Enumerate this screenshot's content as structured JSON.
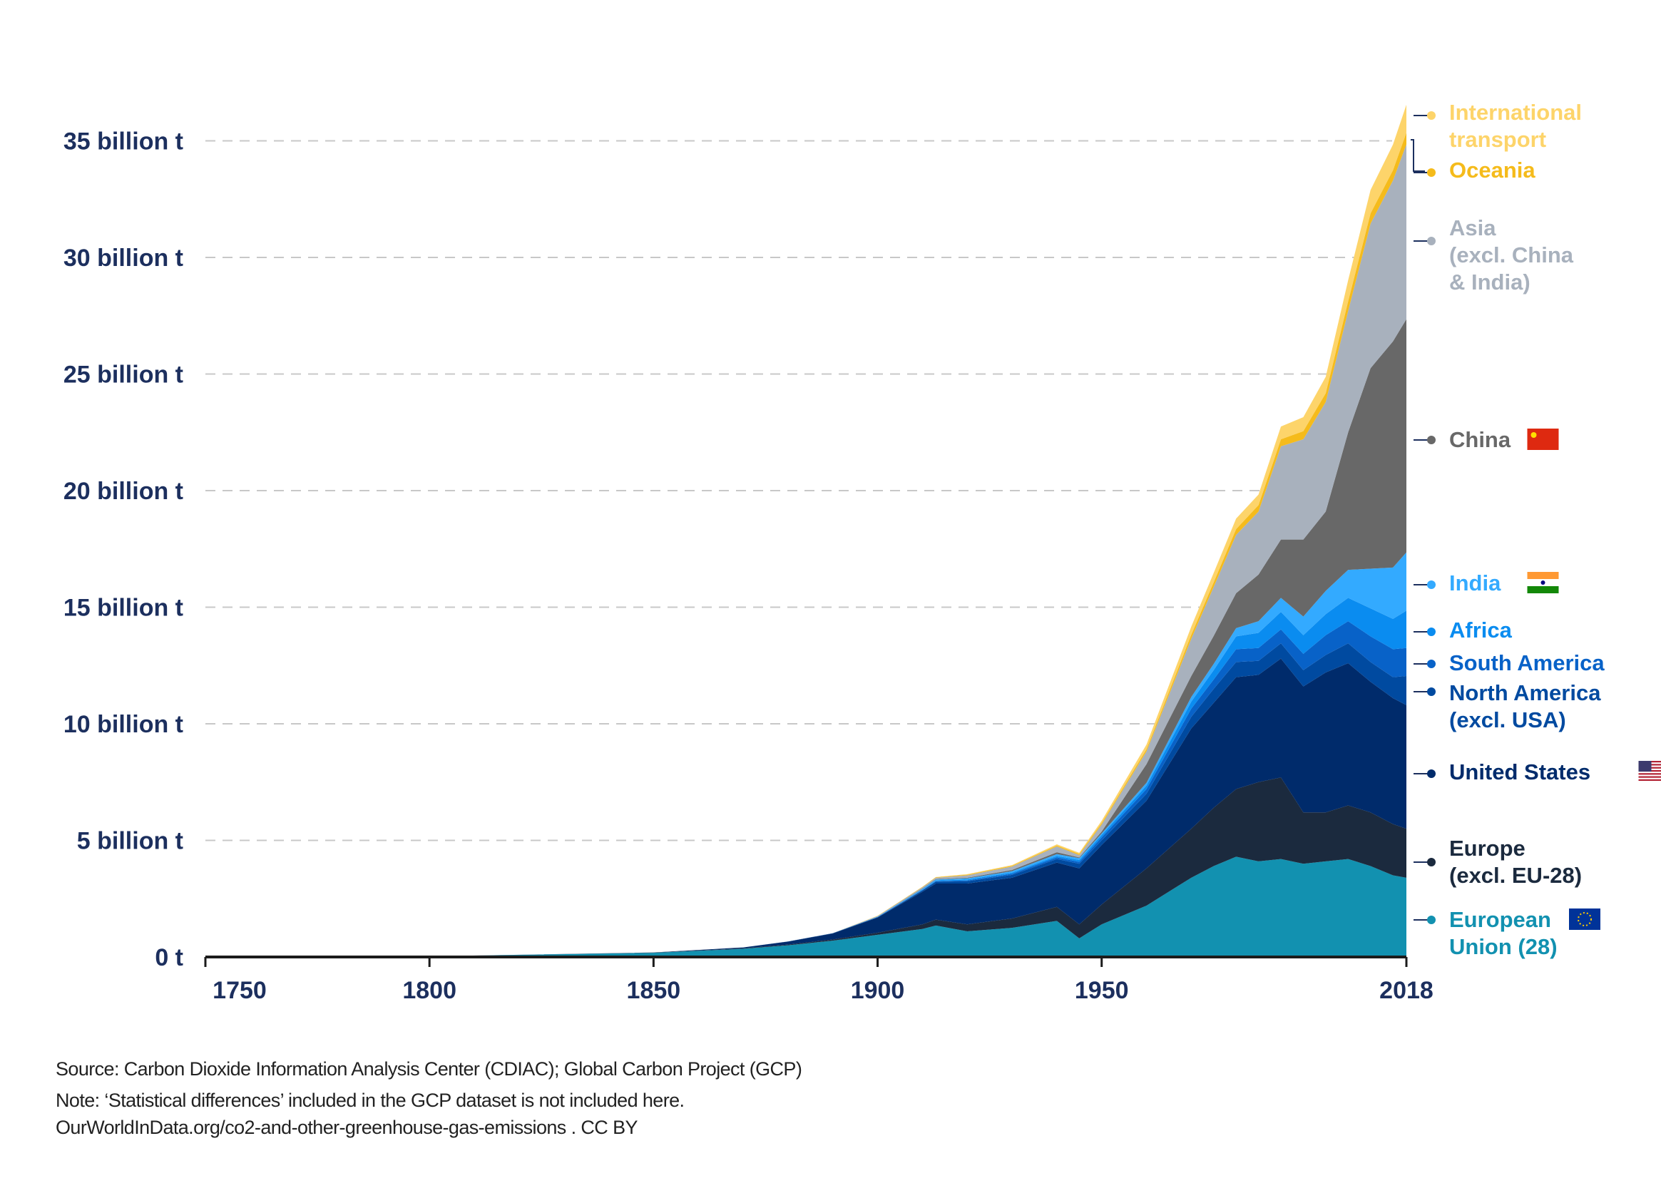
{
  "chart_data": {
    "type": "area",
    "stacked": true,
    "title": "",
    "xlabel": "",
    "ylabel": "",
    "xlim": [
      1750,
      2018
    ],
    "ylim": [
      0,
      36.6
    ],
    "y_unit": "billion t",
    "x_ticks": [
      "1750",
      "1800",
      "1850",
      "1900",
      "1950",
      "2018"
    ],
    "y_ticks": [
      {
        "value": 0,
        "label": "0 t"
      },
      {
        "value": 5,
        "label": "5 billion t"
      },
      {
        "value": 10,
        "label": "10 billion t"
      },
      {
        "value": 15,
        "label": "15 billion t"
      },
      {
        "value": 20,
        "label": "20 billion t"
      },
      {
        "value": 25,
        "label": "25 billion t"
      },
      {
        "value": 30,
        "label": "30 billion t"
      },
      {
        "value": 35,
        "label": "35 billion t"
      }
    ],
    "grid": "horizontal dashed",
    "legend": "right, inline labels",
    "x": [
      1750,
      1800,
      1850,
      1870,
      1880,
      1890,
      1900,
      1910,
      1913,
      1920,
      1930,
      1940,
      1945,
      1950,
      1960,
      1970,
      1975,
      1980,
      1985,
      1990,
      1995,
      2000,
      2005,
      2010,
      2015,
      2018
    ],
    "series": [
      {
        "name": "European Union (28)",
        "label_lines": [
          "European",
          "Union (28)"
        ],
        "color": "#1291b0",
        "flag": "eu",
        "values": [
          0.009,
          0.028,
          0.18,
          0.35,
          0.5,
          0.7,
          0.95,
          1.2,
          1.35,
          1.1,
          1.25,
          1.55,
          0.8,
          1.4,
          2.2,
          3.4,
          3.9,
          4.3,
          4.1,
          4.2,
          4.0,
          4.1,
          4.2,
          3.9,
          3.5,
          3.4
        ]
      },
      {
        "name": "Europe (excl. EU-28)",
        "label_lines": [
          "Europe",
          "(excl. EU-28)"
        ],
        "color": "#1b2a3e",
        "values": [
          0,
          0,
          0.01,
          0.02,
          0.03,
          0.05,
          0.09,
          0.2,
          0.25,
          0.3,
          0.4,
          0.6,
          0.6,
          0.85,
          1.6,
          2.1,
          2.5,
          2.9,
          3.4,
          3.5,
          2.2,
          2.1,
          2.3,
          2.3,
          2.2,
          2.1
        ]
      },
      {
        "name": "United States",
        "label_lines": [
          "United States"
        ],
        "color": "#002b6b",
        "flag": "us",
        "values": [
          0,
          0,
          0.005,
          0.04,
          0.13,
          0.26,
          0.65,
          1.4,
          1.55,
          1.75,
          1.75,
          1.9,
          2.4,
          2.55,
          2.9,
          4.3,
          4.5,
          4.8,
          4.6,
          5.1,
          5.4,
          6.0,
          6.1,
          5.6,
          5.4,
          5.3
        ]
      },
      {
        "name": "North America (excl. USA)",
        "label_lines": [
          "North America",
          "(excl. USA)"
        ],
        "color": "#004aa0",
        "values": [
          0,
          0,
          0,
          0,
          0.005,
          0.01,
          0.02,
          0.05,
          0.08,
          0.1,
          0.12,
          0.15,
          0.2,
          0.2,
          0.3,
          0.5,
          0.6,
          0.65,
          0.6,
          0.65,
          0.7,
          0.75,
          0.85,
          0.85,
          0.9,
          1.25
        ]
      },
      {
        "name": "South America",
        "label_lines": [
          "South America"
        ],
        "color": "#0862c8",
        "values": [
          0,
          0,
          0,
          0,
          0,
          0,
          0.005,
          0.02,
          0.02,
          0.03,
          0.05,
          0.07,
          0.08,
          0.13,
          0.2,
          0.35,
          0.4,
          0.55,
          0.55,
          0.6,
          0.7,
          0.85,
          0.95,
          1.1,
          1.2,
          1.2
        ]
      },
      {
        "name": "Africa",
        "label_lines": [
          "Africa"
        ],
        "color": "#0a8cf0",
        "values": [
          0,
          0,
          0,
          0,
          0,
          0,
          0.005,
          0.02,
          0.03,
          0.04,
          0.05,
          0.06,
          0.08,
          0.1,
          0.15,
          0.3,
          0.4,
          0.55,
          0.65,
          0.75,
          0.8,
          0.9,
          1.0,
          1.2,
          1.3,
          1.6
        ]
      },
      {
        "name": "India",
        "label_lines": [
          "India"
        ],
        "color": "#33aaff",
        "flag": "in",
        "values": [
          0,
          0,
          0,
          0,
          0,
          0,
          0.01,
          0.03,
          0.04,
          0.05,
          0.06,
          0.08,
          0.08,
          0.07,
          0.12,
          0.2,
          0.27,
          0.35,
          0.5,
          0.6,
          0.8,
          1.0,
          1.2,
          1.7,
          2.2,
          2.5
        ]
      },
      {
        "name": "China",
        "label_lines": [
          "China"
        ],
        "color": "#686868",
        "flag": "cn",
        "values": [
          0,
          0,
          0,
          0,
          0,
          0,
          0.005,
          0.02,
          0.02,
          0.03,
          0.05,
          0.08,
          0.03,
          0.08,
          0.8,
          0.9,
          1.2,
          1.5,
          2.0,
          2.5,
          3.3,
          3.4,
          5.9,
          8.6,
          9.7,
          10.0
        ]
      },
      {
        "name": "Asia (excl. China & India)",
        "label_lines": [
          "Asia",
          "(excl. China",
          "& India)"
        ],
        "color": "#a8b1bd",
        "values": [
          0,
          0,
          0,
          0,
          0,
          0,
          0.02,
          0.05,
          0.06,
          0.1,
          0.15,
          0.25,
          0.1,
          0.3,
          0.55,
          1.6,
          2.1,
          2.5,
          2.7,
          4.0,
          4.3,
          4.7,
          5.2,
          6.2,
          6.9,
          7.5
        ]
      },
      {
        "name": "Oceania",
        "label_lines": [
          "Oceania"
        ],
        "color": "#f5bb1b",
        "values": [
          0,
          0,
          0,
          0,
          0,
          0,
          0.01,
          0.02,
          0.02,
          0.03,
          0.03,
          0.04,
          0.05,
          0.06,
          0.09,
          0.17,
          0.2,
          0.25,
          0.28,
          0.3,
          0.35,
          0.38,
          0.42,
          0.44,
          0.44,
          0.5
        ]
      },
      {
        "name": "International transport",
        "label_lines": [
          "International",
          "transport"
        ],
        "color": "#fdd46a",
        "values": [
          0,
          0,
          0,
          0,
          0,
          0,
          0,
          0,
          0.01,
          0.02,
          0.03,
          0.05,
          0.05,
          0.1,
          0.2,
          0.35,
          0.4,
          0.45,
          0.45,
          0.55,
          0.6,
          0.7,
          0.9,
          1.0,
          1.1,
          1.2
        ]
      }
    ]
  },
  "footer": {
    "source": "Source: Carbon Dioxide Information Analysis Center (CDIAC); Global Carbon Project (GCP)",
    "note": "Note: ‘Statistical differences’ included in the GCP dataset is not included here.",
    "credit": "OurWorldInData.org/co2-and-other-greenhouse-gas-emissions . CC BY"
  }
}
